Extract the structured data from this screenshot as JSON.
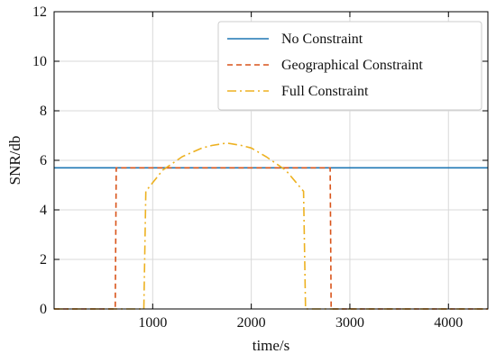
{
  "chart_data": {
    "type": "line",
    "title": "",
    "xlabel": "time/s",
    "ylabel": "SNR/db",
    "xlim": [
      0,
      4400
    ],
    "ylim": [
      0,
      12
    ],
    "xticks": [
      1000,
      2000,
      3000,
      4000
    ],
    "yticks": [
      0,
      2,
      4,
      6,
      8,
      10,
      12
    ],
    "grid": true,
    "legend_position": "top-right",
    "series": [
      {
        "name": "No Constraint",
        "color": "#1f77b4",
        "style": "solid",
        "x": [
          0,
          4400
        ],
        "y": [
          5.7,
          5.7
        ]
      },
      {
        "name": "Geographical Constraint",
        "color": "#d9541a",
        "style": "dashed",
        "x": [
          0,
          620,
          630,
          2800,
          2810,
          4400
        ],
        "y": [
          0,
          0,
          5.7,
          5.7,
          0,
          0
        ]
      },
      {
        "name": "Full Constraint",
        "color": "#edb120",
        "style": "dashdot",
        "x": [
          0,
          910,
          930,
          1100,
          1300,
          1500,
          1600,
          1750,
          1900,
          2000,
          2150,
          2350,
          2530,
          2550,
          4400
        ],
        "y": [
          0,
          0,
          4.75,
          5.6,
          6.15,
          6.5,
          6.6,
          6.7,
          6.6,
          6.5,
          6.15,
          5.6,
          4.75,
          0,
          0
        ]
      }
    ]
  }
}
